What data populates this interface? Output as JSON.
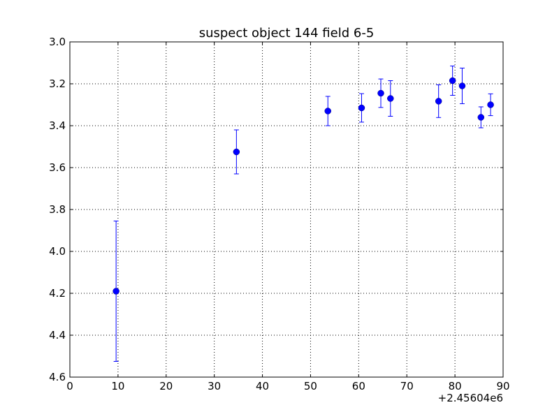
{
  "chart_data": {
    "type": "scatter",
    "title": "suspect object 144 field 6-5",
    "xlabel": "",
    "ylabel": "",
    "x_offset_label": "+2.45604e6",
    "xlim": [
      0,
      90
    ],
    "ylim": [
      3.0,
      4.6
    ],
    "y_inverted": true,
    "grid": true,
    "x_ticks": [
      0,
      10,
      20,
      30,
      40,
      50,
      60,
      70,
      80,
      90
    ],
    "x_tick_labels": [
      "0",
      "10",
      "20",
      "30",
      "40",
      "50",
      "60",
      "70",
      "80",
      "90"
    ],
    "y_ticks": [
      3.0,
      3.2,
      3.4,
      3.6,
      3.8,
      4.0,
      4.2,
      4.4,
      4.6
    ],
    "y_tick_labels": [
      "3.0",
      "3.2",
      "3.4",
      "3.6",
      "3.8",
      "4.0",
      "4.2",
      "4.4",
      "4.6"
    ],
    "marker_color": "#0000ff",
    "points": [
      {
        "x": 9.6,
        "y": 4.19,
        "err": 0.335
      },
      {
        "x": 34.6,
        "y": 3.525,
        "err": 0.105
      },
      {
        "x": 53.6,
        "y": 3.33,
        "err": 0.07
      },
      {
        "x": 60.6,
        "y": 3.315,
        "err": 0.068
      },
      {
        "x": 64.6,
        "y": 3.245,
        "err": 0.068
      },
      {
        "x": 66.6,
        "y": 3.27,
        "err": 0.085
      },
      {
        "x": 76.6,
        "y": 3.283,
        "err": 0.078
      },
      {
        "x": 79.5,
        "y": 3.185,
        "err": 0.07
      },
      {
        "x": 81.5,
        "y": 3.21,
        "err": 0.085
      },
      {
        "x": 85.4,
        "y": 3.36,
        "err": 0.05
      },
      {
        "x": 87.4,
        "y": 3.3,
        "err": 0.052
      }
    ]
  }
}
